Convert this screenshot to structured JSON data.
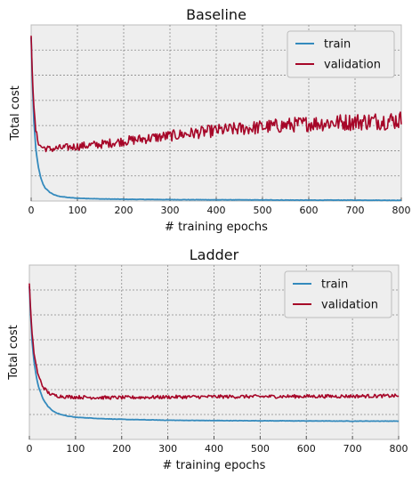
{
  "chart_data": [
    {
      "type": "line",
      "title": "Baseline",
      "xlabel": "# training epochs",
      "ylabel": "Total cost",
      "xlim": [
        0,
        800
      ],
      "xticks": [
        "0",
        "100",
        "200",
        "300",
        "400",
        "500",
        "600",
        "700",
        "800"
      ],
      "ylim": [
        0,
        1
      ],
      "y_tick_labels_shown": false,
      "grid": true,
      "legend_position": "top-right",
      "series": [
        {
          "name": "train",
          "color": "#348ABD",
          "x": [
            0,
            3,
            6,
            10,
            15,
            20,
            25,
            30,
            40,
            50,
            60,
            80,
            100,
            150,
            200,
            300,
            400,
            500,
            600,
            700,
            800
          ],
          "y": [
            0.93,
            0.65,
            0.45,
            0.3,
            0.2,
            0.14,
            0.1,
            0.075,
            0.05,
            0.035,
            0.027,
            0.02,
            0.016,
            0.012,
            0.01,
            0.008,
            0.007,
            0.006,
            0.005,
            0.005,
            0.004
          ]
        },
        {
          "name": "validation",
          "color": "#A60628",
          "x": [
            0,
            3,
            6,
            10,
            15,
            20,
            30,
            40,
            50,
            60,
            80,
            100,
            150,
            200,
            250,
            300,
            350,
            400,
            450,
            500,
            550,
            600,
            650,
            700,
            750,
            800
          ],
          "y": [
            0.95,
            0.7,
            0.52,
            0.4,
            0.34,
            0.31,
            0.3,
            0.295,
            0.297,
            0.3,
            0.305,
            0.31,
            0.322,
            0.34,
            0.355,
            0.37,
            0.385,
            0.4,
            0.41,
            0.42,
            0.43,
            0.44,
            0.445,
            0.45,
            0.455,
            0.46
          ]
        }
      ]
    },
    {
      "type": "line",
      "title": "Ladder",
      "xlabel": "# training epochs",
      "ylabel": "Total cost",
      "xlim": [
        0,
        800
      ],
      "xticks": [
        "0",
        "100",
        "200",
        "300",
        "400",
        "500",
        "600",
        "700",
        "800"
      ],
      "ylim": [
        0,
        1
      ],
      "y_tick_labels_shown": false,
      "grid": true,
      "legend_position": "top-right",
      "series": [
        {
          "name": "train",
          "color": "#348ABD",
          "x": [
            0,
            3,
            6,
            10,
            15,
            20,
            30,
            40,
            50,
            60,
            80,
            100,
            150,
            200,
            300,
            400,
            500,
            600,
            700,
            800
          ],
          "y": [
            0.88,
            0.7,
            0.56,
            0.45,
            0.36,
            0.3,
            0.23,
            0.19,
            0.165,
            0.15,
            0.135,
            0.127,
            0.12,
            0.115,
            0.11,
            0.108,
            0.107,
            0.106,
            0.105,
            0.105
          ]
        },
        {
          "name": "validation",
          "color": "#A60628",
          "x": [
            0,
            3,
            6,
            10,
            15,
            20,
            30,
            40,
            50,
            60,
            80,
            100,
            150,
            200,
            300,
            400,
            500,
            600,
            700,
            800
          ],
          "y": [
            0.9,
            0.72,
            0.6,
            0.5,
            0.42,
            0.36,
            0.3,
            0.27,
            0.255,
            0.25,
            0.245,
            0.243,
            0.24,
            0.24,
            0.243,
            0.245,
            0.246,
            0.247,
            0.248,
            0.25
          ]
        }
      ]
    }
  ]
}
